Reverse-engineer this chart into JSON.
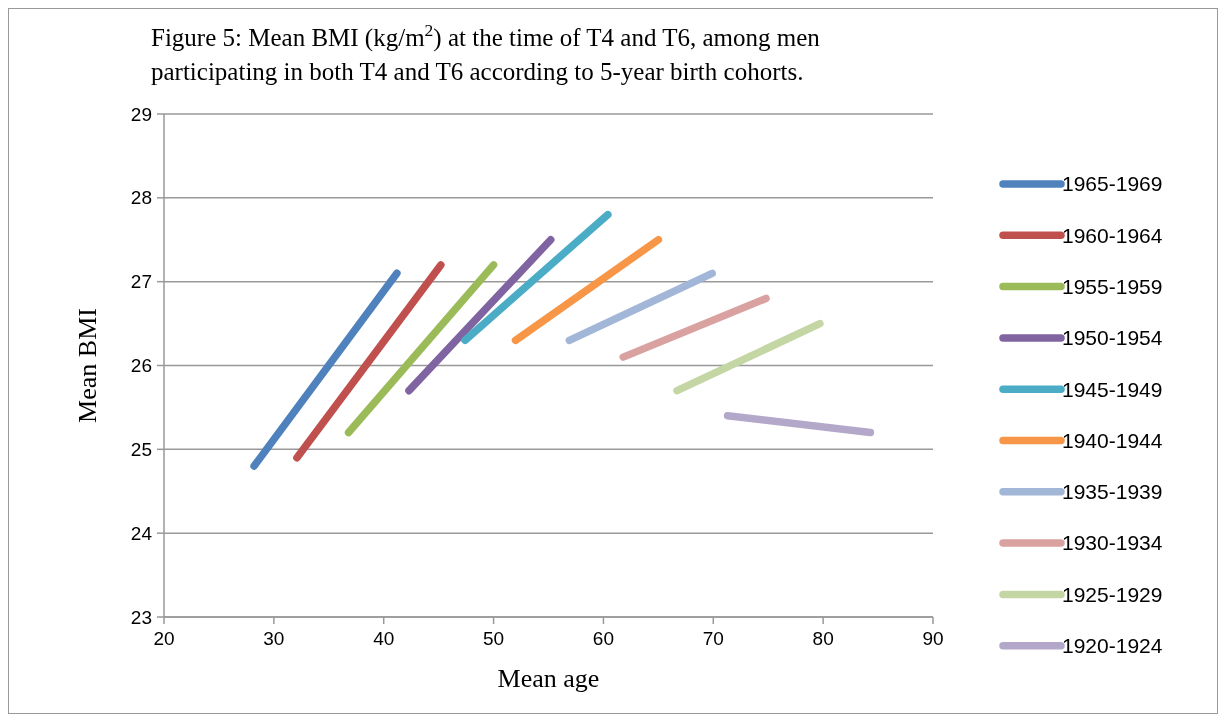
{
  "chart_data": {
    "type": "line",
    "title": "Figure 5: Mean BMI (kg/m$^{2}$) at the time of T4 and T6, among men participating in both T4 and T6 according to 5-year birth cohorts.",
    "xlabel": "Mean age",
    "ylabel": "Mean BMI",
    "xlim": [
      20,
      90
    ],
    "xticks": [
      20,
      30,
      40,
      50,
      60,
      70,
      80,
      90
    ],
    "ylim": [
      23,
      29
    ],
    "yticks": [
      23,
      24,
      25,
      26,
      27,
      28,
      29
    ],
    "grid": "y",
    "legend": "right",
    "marker": "none",
    "line_style": "solid",
    "series": [
      {
        "name": "1965-1969",
        "color": "#4f81bd",
        "x": [
          28.2,
          41.2
        ],
        "values": [
          24.8,
          27.1
        ]
      },
      {
        "name": "1960-1964",
        "color": "#c0504d",
        "x": [
          32.1,
          45.2
        ],
        "values": [
          24.9,
          27.2
        ]
      },
      {
        "name": "1955-1959",
        "color": "#9bbb59",
        "x": [
          36.8,
          50.0
        ],
        "values": [
          25.2,
          27.2
        ]
      },
      {
        "name": "1950-1954",
        "color": "#8064a2",
        "x": [
          42.3,
          55.2
        ],
        "values": [
          25.7,
          27.5
        ]
      },
      {
        "name": "1945-1949",
        "color": "#4bacc6",
        "x": [
          47.4,
          60.4
        ],
        "values": [
          26.3,
          27.8
        ]
      },
      {
        "name": "1940-1944",
        "color": "#f79646",
        "x": [
          52.0,
          65.0
        ],
        "values": [
          26.3,
          27.5
        ]
      },
      {
        "name": "1935-1939",
        "color": "#a2b6d8",
        "x": [
          56.9,
          69.9
        ],
        "values": [
          26.3,
          27.1
        ]
      },
      {
        "name": "1930-1934",
        "color": "#d9a19f",
        "x": [
          61.8,
          74.8
        ],
        "values": [
          26.1,
          26.8
        ]
      },
      {
        "name": "1925-1929",
        "color": "#c3d6a4",
        "x": [
          66.7,
          79.7
        ],
        "values": [
          25.7,
          26.5
        ]
      },
      {
        "name": "1920-1924",
        "color": "#b3a8c9",
        "x": [
          71.3,
          84.3
        ],
        "values": [
          25.4,
          25.2
        ]
      }
    ]
  }
}
